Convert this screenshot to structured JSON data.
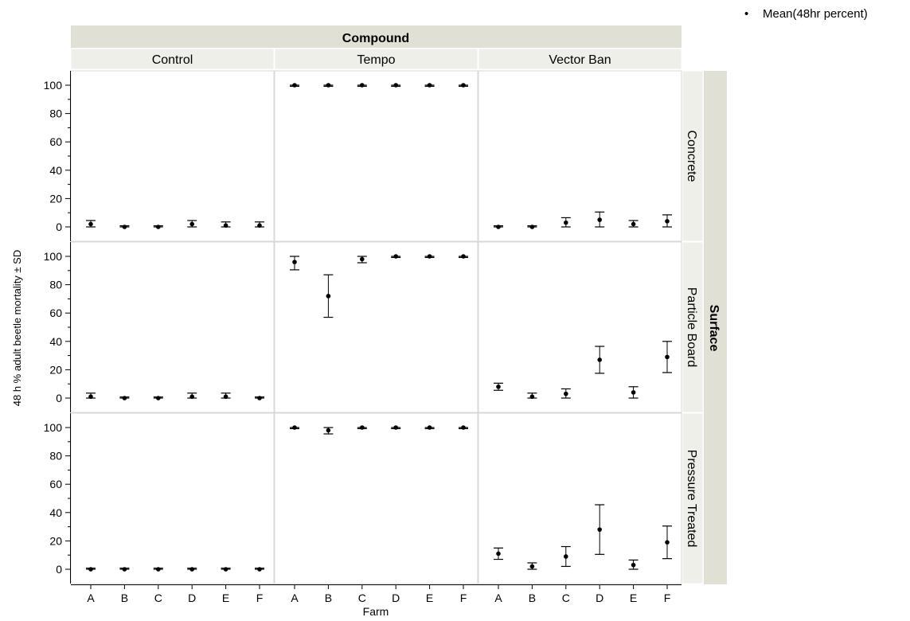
{
  "legend": {
    "marker": "•",
    "label": "Mean(48hr percent)"
  },
  "chart_data": {
    "type": "scatter",
    "column_group_label": "Compound",
    "row_group_label": "Surface",
    "columns": [
      "Control",
      "Tempo",
      "Vector Ban"
    ],
    "rows": [
      "Concrete",
      "Particle Board",
      "Pressure Treated"
    ],
    "categories": [
      "A",
      "B",
      "C",
      "D",
      "E",
      "F"
    ],
    "xlabel": "Farm",
    "ylabel": "48 h % adult beetle mortality ± SD",
    "ylim": [
      0,
      100
    ],
    "yticks": [
      0,
      20,
      40,
      60,
      80,
      100
    ],
    "ytick_labels": [
      "0",
      "20",
      "40",
      "60",
      "80",
      "100"
    ],
    "error_bars": "± SD",
    "panels": [
      {
        "column": "Control",
        "row": "Concrete",
        "means": [
          2,
          0,
          0,
          2,
          1,
          1
        ],
        "sd": [
          2.5,
          0.8,
          0.8,
          2.5,
          2.5,
          2.5
        ]
      },
      {
        "column": "Tempo",
        "row": "Concrete",
        "means": [
          100,
          100,
          100,
          100,
          100,
          100
        ],
        "sd": [
          0.8,
          0.8,
          0.8,
          0.8,
          0.8,
          0.8
        ]
      },
      {
        "column": "Vector Ban",
        "row": "Concrete",
        "means": [
          0,
          0,
          3,
          5,
          2,
          4
        ],
        "sd": [
          0.8,
          0.8,
          3.5,
          5.5,
          2.5,
          4.5
        ]
      },
      {
        "column": "Control",
        "row": "Particle Board",
        "means": [
          1,
          0,
          0,
          1,
          1,
          0
        ],
        "sd": [
          2.5,
          0.8,
          0.8,
          2.5,
          2.5,
          0.8
        ]
      },
      {
        "column": "Tempo",
        "row": "Particle Board",
        "means": [
          96,
          72,
          98,
          100,
          100,
          100
        ],
        "sd": [
          5.5,
          15,
          2.5,
          0.8,
          0.8,
          0.8
        ]
      },
      {
        "column": "Vector Ban",
        "row": "Particle Board",
        "means": [
          8,
          1,
          3,
          27,
          4,
          29
        ],
        "sd": [
          2.5,
          2.5,
          3.5,
          9.5,
          4,
          11
        ]
      },
      {
        "column": "Control",
        "row": "Pressure Treated",
        "means": [
          0,
          0,
          0,
          0,
          0,
          0
        ],
        "sd": [
          0.8,
          0.8,
          0.8,
          0.8,
          0.8,
          0.8
        ]
      },
      {
        "column": "Tempo",
        "row": "Pressure Treated",
        "means": [
          100,
          98,
          100,
          100,
          100,
          100
        ],
        "sd": [
          0.8,
          2.5,
          0.8,
          0.8,
          0.8,
          0.8
        ]
      },
      {
        "column": "Vector Ban",
        "row": "Pressure Treated",
        "means": [
          11,
          2,
          9,
          28,
          3,
          19
        ],
        "sd": [
          4,
          2.5,
          7,
          17.5,
          3.5,
          11.5
        ]
      }
    ]
  }
}
